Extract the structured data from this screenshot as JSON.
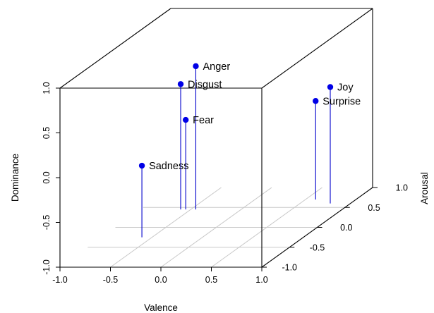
{
  "chart_data": {
    "type": "scatter3d",
    "title": "",
    "xlabel": "Valence",
    "ylabel": "Arousal",
    "zlabel": "Dominance",
    "xlim": [
      -1.0,
      1.0
    ],
    "ylim": [
      -1.0,
      1.0
    ],
    "zlim": [
      -1.0,
      1.0
    ],
    "x_ticks": [
      "-1.0",
      "-0.5",
      "0.0",
      "0.5",
      "1.0"
    ],
    "y_ticks": [
      "-1.0",
      "-0.5",
      "0.0",
      "0.5",
      "1.0"
    ],
    "z_ticks": [
      "-1.0",
      "-0.5",
      "0.0",
      "0.5",
      "1.0"
    ],
    "grid": "floor",
    "colors": {
      "points": "#0000e6",
      "stems": "#0000cc",
      "grid": "#c8c8c8",
      "box": "#000000"
    },
    "points": [
      {
        "label": "Anger",
        "x": -0.45,
        "y": 0.45,
        "z": 0.6
      },
      {
        "label": "Disgust",
        "x": -0.6,
        "y": 0.45,
        "z": 0.4
      },
      {
        "label": "Fear",
        "x": -0.55,
        "y": 0.45,
        "z": 0.0
      },
      {
        "label": "Sadness",
        "x": -0.6,
        "y": -0.25,
        "z": -0.2
      },
      {
        "label": "Joy",
        "x": 0.8,
        "y": 0.6,
        "z": 0.3
      },
      {
        "label": "Surprise",
        "x": 0.6,
        "y": 0.7,
        "z": 0.1
      }
    ]
  }
}
